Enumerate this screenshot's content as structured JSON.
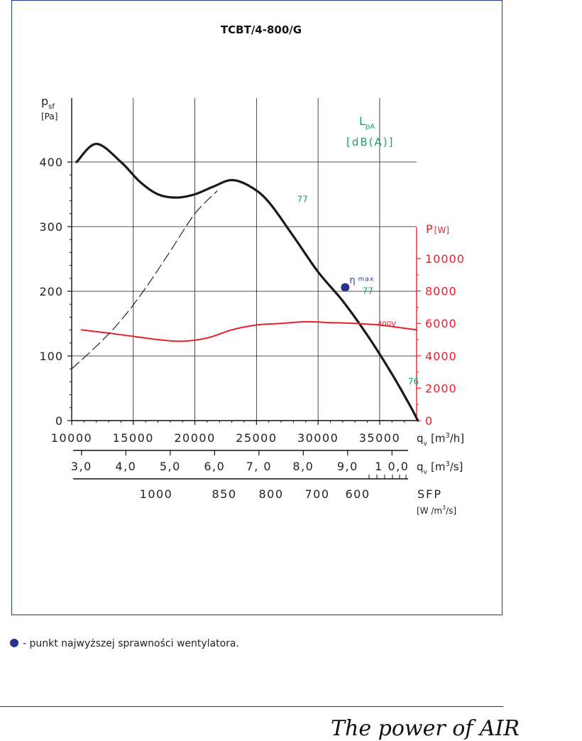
{
  "colors": {
    "frame": "#1f3a8a",
    "pressure_curve": "#1a1a1a",
    "power_curve": "#e8202a",
    "sound": "#1aa06e",
    "eta": "#27348b",
    "grid": "#1a1a1a"
  },
  "chart_data": {
    "type": "line",
    "title": "TCBT/4-800/G",
    "y_left": {
      "label_main": "p",
      "label_sub": "sf",
      "unit": "[Pa]",
      "range": [
        0,
        400
      ],
      "ticks": [
        "0",
        "100",
        "200",
        "300",
        "400"
      ]
    },
    "y_right": {
      "label_main": "P",
      "unit": "[W]",
      "range": [
        0,
        10000
      ],
      "ticks": [
        "0",
        "2000",
        "4000",
        "6000",
        "8000",
        "10000"
      ]
    },
    "sound_axis": {
      "label_main": "L",
      "label_sub": "pA",
      "unit": "[dB(A)]"
    },
    "x_axes": [
      {
        "name": "qv_m3h",
        "range": [
          10000,
          38000
        ],
        "ticks": [
          "10000",
          "15000",
          "20000",
          "25000",
          "30000",
          "35000"
        ],
        "label_main": "q",
        "label_sub": "v",
        "unit": "[m",
        "unit_sup": "3",
        "unit_end": "/h]"
      },
      {
        "name": "qv_m3s",
        "ticks": [
          "3,0",
          "4,0",
          "5,0",
          "6,0",
          "7, 0",
          "8,0",
          "9,0",
          "1 0,0"
        ],
        "tick_values": [
          3,
          4,
          5,
          6,
          7,
          8,
          9,
          10
        ],
        "label_main": "q",
        "label_sub": "v",
        "unit": "[m",
        "unit_sup": "3",
        "unit_end": "/s]"
      },
      {
        "name": "sfp",
        "ticks": [
          "1000",
          "850",
          "800",
          "700",
          "600"
        ],
        "tick_values": [
          1000,
          850,
          800,
          700,
          600
        ],
        "label_main": "SFP",
        "unit": "[W /m",
        "unit_sup": "3",
        "unit_end": "/s]"
      }
    ],
    "series": [
      {
        "key": "pressure",
        "axis": "left",
        "x": [
          10400,
          12000,
          14000,
          15500,
          17000,
          18500,
          20000,
          21500,
          23000,
          24500,
          26000,
          28000,
          30000,
          32000,
          34000,
          36000,
          37500,
          38100
        ],
        "y": [
          400,
          428,
          400,
          370,
          350,
          345,
          350,
          362,
          372,
          362,
          338,
          285,
          230,
          185,
          132,
          72,
          22,
          0
        ]
      },
      {
        "key": "power",
        "axis": "right",
        "name": "400V",
        "x": [
          10800,
          13000,
          15000,
          17000,
          19000,
          21000,
          23000,
          25000,
          27000,
          29000,
          31000,
          33000,
          35000,
          37000,
          38000
        ],
        "y": [
          5600,
          5400,
          5200,
          5000,
          4900,
          5100,
          5600,
          5900,
          6000,
          6100,
          6050,
          6000,
          5900,
          5700,
          5600
        ]
      },
      {
        "key": "system_curve",
        "axis": "left",
        "style": "dashed",
        "x": [
          10000,
          12000,
          14000,
          16000,
          18000,
          20000,
          21800
        ],
        "y": [
          80,
          115,
          155,
          205,
          262,
          320,
          355
        ]
      }
    ],
    "annotations": [
      {
        "text": "77",
        "x": 28300,
        "y": 338
      },
      {
        "text": "77",
        "x": 33600,
        "y": 196
      },
      {
        "text": "76",
        "x": 37300,
        "y": 56
      }
    ],
    "eta_point": {
      "label": "η",
      "label_sub": "max",
      "x": 32200,
      "y": 206
    },
    "grid": true
  },
  "legend_text": "- punkt najwyższej sprawności wentylatora.",
  "brand_text": "The power of AIR"
}
